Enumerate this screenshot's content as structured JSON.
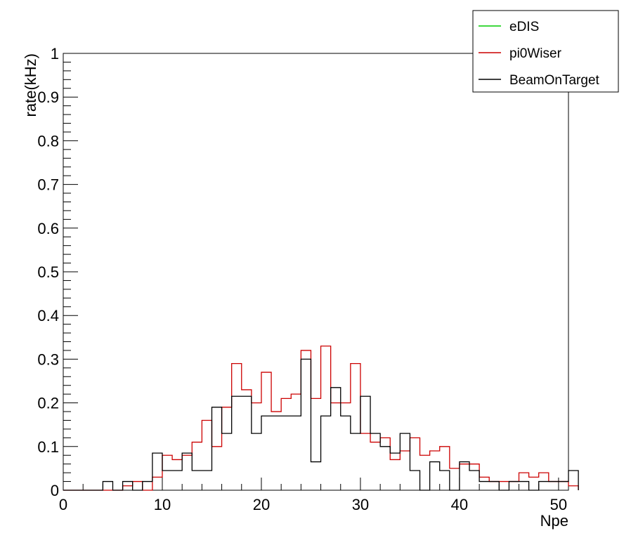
{
  "chart_data": {
    "type": "line",
    "style": "step-histogram",
    "xlabel": "Npe",
    "ylabel": "rate(kHz)",
    "xlim": [
      0,
      51
    ],
    "ylim": [
      0,
      1
    ],
    "bin_width": 1,
    "x_ticks": [
      "0",
      "10",
      "20",
      "30",
      "40",
      "50"
    ],
    "y_ticks": [
      "0",
      "0.1",
      "0.2",
      "0.3",
      "0.4",
      "0.5",
      "0.6",
      "0.7",
      "0.8",
      "0.9",
      "1"
    ],
    "legend_position": "top-right",
    "series": [
      {
        "name": "eDIS",
        "color": "#00cc00",
        "values": []
      },
      {
        "name": "pi0Wiser",
        "color": "#cc0000",
        "values": [
          0,
          0,
          0,
          0,
          0,
          0,
          0.01,
          0.02,
          0,
          0.03,
          0.08,
          0.07,
          0.08,
          0.11,
          0.16,
          0.1,
          0.19,
          0.29,
          0.23,
          0.2,
          0.27,
          0.18,
          0.21,
          0.22,
          0.32,
          0.21,
          0.33,
          0.2,
          0.2,
          0.29,
          0.13,
          0.11,
          0.12,
          0.07,
          0.09,
          0.12,
          0.08,
          0.09,
          0.1,
          0.05,
          0.06,
          0.06,
          0.03,
          0.02,
          0.02,
          0.02,
          0.04,
          0.03,
          0.04,
          0.02,
          0.02,
          0.01
        ]
      },
      {
        "name": "BeamOnTarget",
        "color": "#000000",
        "values": [
          0,
          0,
          0,
          0,
          0.02,
          0,
          0.02,
          0,
          0.02,
          0.085,
          0.045,
          0.045,
          0.085,
          0.045,
          0.045,
          0.19,
          0.13,
          0.215,
          0.215,
          0.13,
          0.17,
          0.17,
          0.17,
          0.17,
          0.3,
          0.065,
          0.17,
          0.235,
          0.17,
          0.13,
          0.215,
          0.13,
          0.1,
          0.085,
          0.13,
          0.045,
          0,
          0.065,
          0.045,
          0,
          0.065,
          0.045,
          0.02,
          0.02,
          0,
          0.02,
          0.02,
          0,
          0.02,
          0.02,
          0.02,
          0.045
        ]
      }
    ]
  }
}
